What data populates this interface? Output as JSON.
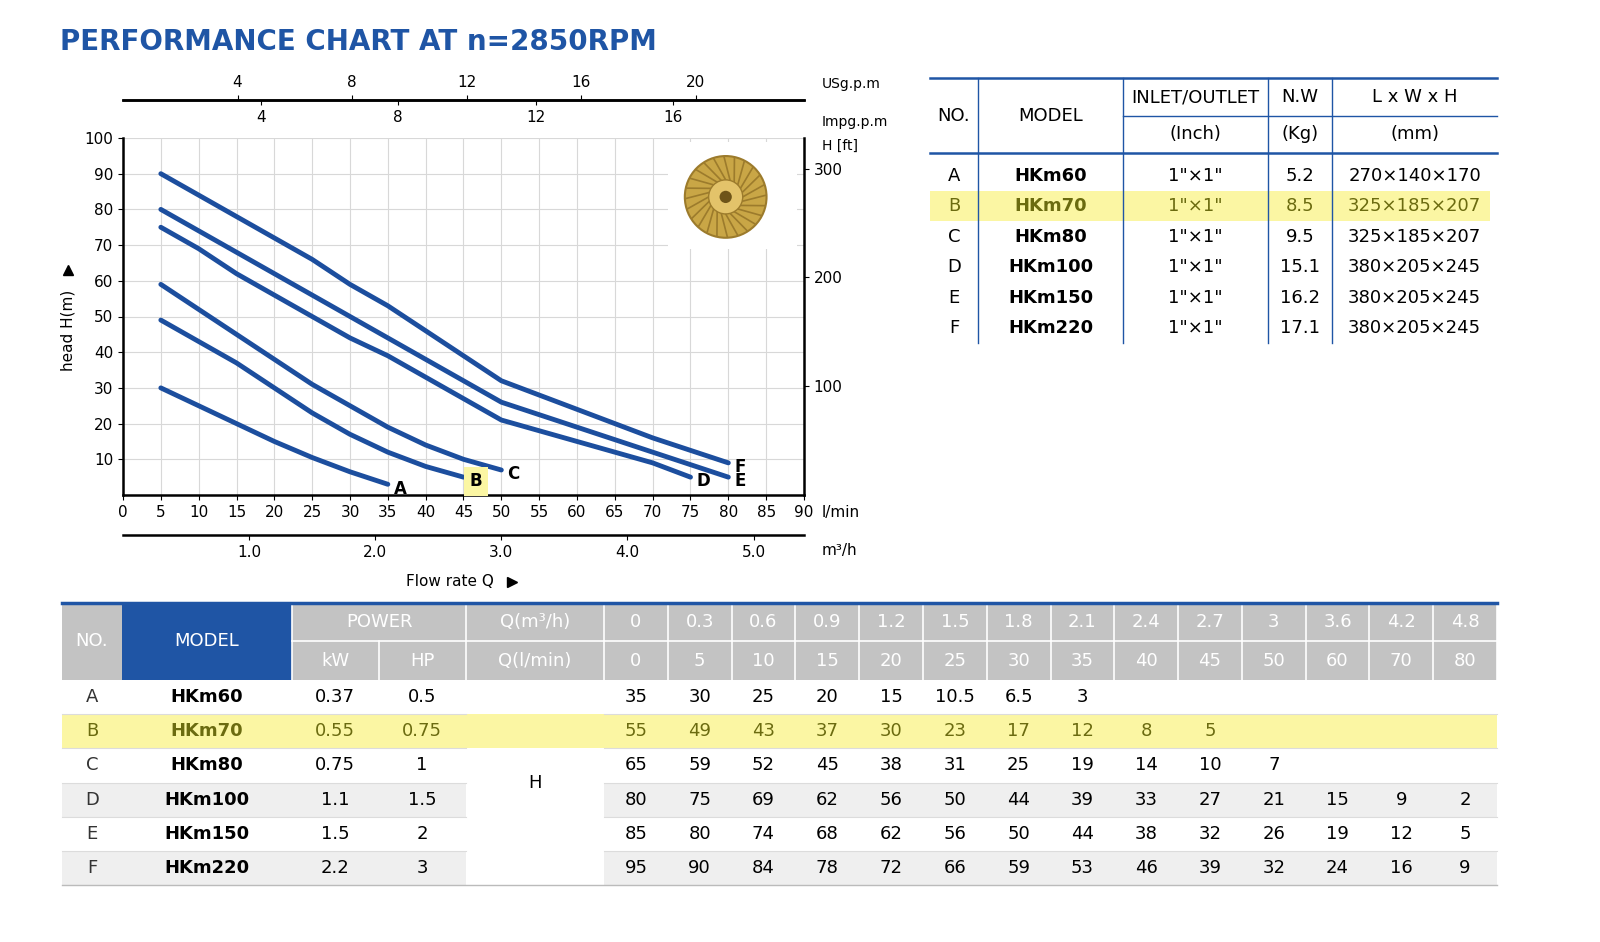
{
  "title": "PERFORMANCE CHART AT n=2850RPM",
  "chart_data": {
    "type": "line",
    "xlabel": "Flow rate Q",
    "ylabel": "head H(m)",
    "x_unit": "l/min",
    "xlim": [
      0,
      90
    ],
    "xticks": [
      0,
      5,
      10,
      15,
      20,
      25,
      30,
      35,
      40,
      45,
      50,
      55,
      60,
      65,
      70,
      75,
      80,
      85,
      90
    ],
    "ylim": [
      0,
      100
    ],
    "yticks": [
      10,
      20,
      30,
      40,
      50,
      60,
      70,
      80,
      90,
      100
    ],
    "y2label": "H [ft]",
    "y2lim": [
      0,
      328.08
    ],
    "y2ticks": [
      100,
      200,
      300
    ],
    "usgpm_axis": {
      "label": "USg.p.m",
      "xlim": [
        0,
        23.78
      ],
      "xticks": [
        4,
        8,
        12,
        16,
        20
      ]
    },
    "impgpm_axis": {
      "label": "Impg.p.m",
      "xlim": [
        0,
        19.8
      ],
      "xticks": [
        4,
        8,
        12,
        16
      ]
    },
    "m3h_axis": {
      "label": "m³/h",
      "xlim": [
        0,
        5.4
      ],
      "xticks": [
        {
          "value": 1,
          "label": "1.0"
        },
        {
          "value": 2,
          "label": "2.0"
        },
        {
          "value": 3,
          "label": "3.0"
        },
        {
          "value": 4,
          "label": "4.0"
        },
        {
          "value": 5,
          "label": "5.0"
        }
      ]
    },
    "grid": true,
    "color": "#1c4e9e",
    "highlight": "B",
    "series": [
      {
        "name": "A",
        "x": [
          5,
          10,
          15,
          20,
          25,
          30,
          35
        ],
        "values": [
          30,
          25,
          20,
          15,
          10.5,
          6.5,
          3
        ]
      },
      {
        "name": "B",
        "x": [
          5,
          10,
          15,
          20,
          25,
          30,
          35,
          40,
          45
        ],
        "values": [
          49,
          43,
          37,
          30,
          23,
          17,
          12,
          8,
          5
        ]
      },
      {
        "name": "C",
        "x": [
          5,
          10,
          15,
          20,
          25,
          30,
          35,
          40,
          45,
          50
        ],
        "values": [
          59,
          52,
          45,
          38,
          31,
          25,
          19,
          14,
          10,
          7
        ]
      },
      {
        "name": "D",
        "x": [
          5,
          10,
          15,
          20,
          25,
          30,
          35,
          40,
          45,
          50,
          60,
          70,
          75
        ],
        "values": [
          75,
          69,
          62,
          56,
          50,
          44,
          39,
          33,
          27,
          21,
          15,
          9,
          5
        ]
      },
      {
        "name": "E",
        "x": [
          5,
          10,
          15,
          20,
          25,
          30,
          35,
          40,
          45,
          50,
          60,
          70,
          80
        ],
        "values": [
          80,
          74,
          68,
          62,
          56,
          50,
          44,
          38,
          32,
          26,
          19,
          12,
          5
        ]
      },
      {
        "name": "F",
        "x": [
          5,
          10,
          15,
          20,
          25,
          30,
          35,
          40,
          45,
          50,
          60,
          70,
          80
        ],
        "values": [
          90,
          84,
          78,
          72,
          66,
          59,
          53,
          46,
          39,
          32,
          24,
          16,
          9
        ]
      }
    ]
  },
  "spec_table": {
    "header": [
      "NO.",
      "MODEL",
      "INLET/OUTLET",
      "N.W",
      "L x W x H"
    ],
    "units": [
      null,
      null,
      "(Inch)",
      "(Kg)",
      "(mm)"
    ],
    "highlight": "B",
    "rows": [
      [
        "A",
        "HKm60",
        "1\"×1\"",
        5.2,
        "270×140×170"
      ],
      [
        "B",
        "HKm70",
        "1\"×1\"",
        8.5,
        "325×185×207"
      ],
      [
        "C",
        "HKm80",
        "1\"×1\"",
        9.5,
        "325×185×207"
      ],
      [
        "D",
        "HKm100",
        "1\"×1\"",
        15.1,
        "380×205×245"
      ],
      [
        "E",
        "HKm150",
        "1\"×1\"",
        16.2,
        "380×205×245"
      ],
      [
        "F",
        "HKm220",
        "1\"×1\"",
        17.1,
        "380×205×245"
      ]
    ]
  },
  "performance_table": {
    "header": {
      "no": "NO.",
      "model": "MODEL",
      "power": "POWER",
      "power_units": [
        "kW",
        "HP"
      ],
      "q_m3h_label": "Q(m³/h)",
      "q_lmin_label": "Q(l/min)",
      "head_label": "H"
    },
    "q_m3h": [
      0,
      0.3,
      0.6,
      0.9,
      1.2,
      1.5,
      1.8,
      2.1,
      2.4,
      2.7,
      3,
      3.6,
      4.2,
      4.8
    ],
    "q_lmin": [
      0,
      5,
      10,
      15,
      20,
      25,
      30,
      35,
      40,
      45,
      50,
      60,
      70,
      80
    ],
    "highlight": "B",
    "rows": [
      {
        "no": "A",
        "model": "HKm60",
        "kw": 0.37,
        "hp": 0.5,
        "head": [
          35,
          30,
          25,
          20,
          15,
          10.5,
          6.5,
          3,
          null,
          null,
          null,
          null,
          null,
          null
        ]
      },
      {
        "no": "B",
        "model": "HKm70",
        "kw": 0.55,
        "hp": 0.75,
        "head": [
          55,
          49,
          43,
          37,
          30,
          23,
          17,
          12,
          8,
          5,
          null,
          null,
          null,
          null
        ]
      },
      {
        "no": "C",
        "model": "HKm80",
        "kw": 0.75,
        "hp": 1,
        "head": [
          65,
          59,
          52,
          45,
          38,
          31,
          25,
          19,
          14,
          10,
          7,
          null,
          null,
          null
        ]
      },
      {
        "no": "D",
        "model": "HKm100",
        "kw": 1.1,
        "hp": 1.5,
        "head": [
          80,
          75,
          69,
          62,
          56,
          50,
          44,
          39,
          33,
          27,
          21,
          15,
          9,
          2
        ]
      },
      {
        "no": "E",
        "model": "HKm150",
        "kw": 1.5,
        "hp": 2,
        "head": [
          85,
          80,
          74,
          68,
          62,
          56,
          50,
          44,
          38,
          32,
          26,
          19,
          12,
          5
        ]
      },
      {
        "no": "F",
        "model": "HKm220",
        "kw": 2.2,
        "hp": 3,
        "head": [
          95,
          90,
          84,
          78,
          72,
          66,
          59,
          53,
          46,
          39,
          32,
          24,
          16,
          9
        ]
      }
    ]
  }
}
